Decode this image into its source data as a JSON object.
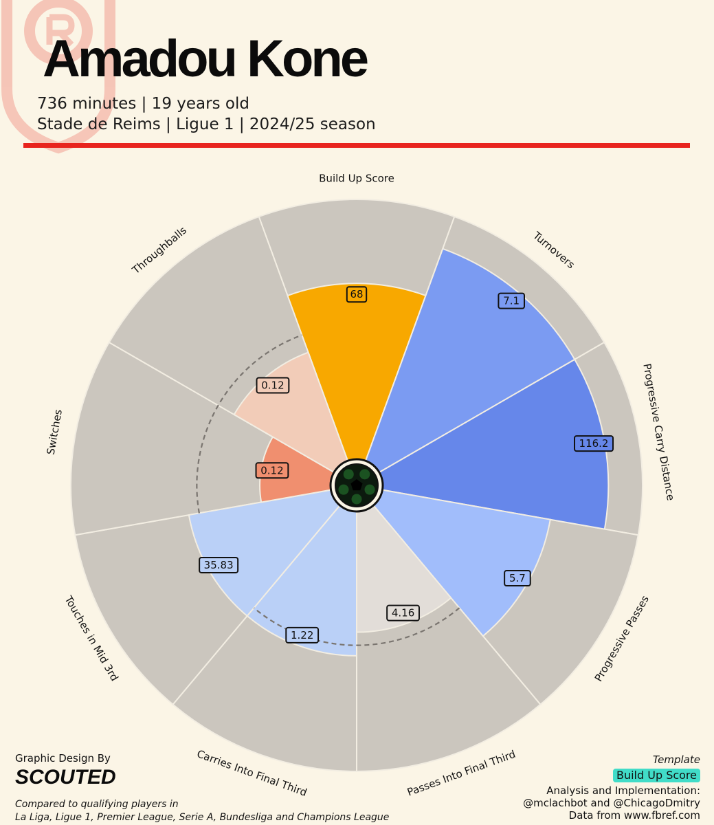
{
  "header": {
    "player_name": "Amadou Kone",
    "line1": "736 minutes | 19 years old",
    "line2": "Stade de Reims | Ligue 1 | 2024/25 season"
  },
  "chart_data": {
    "type": "radar",
    "subtype": "polar-bar",
    "center_icon": "soccer-ball-icon",
    "categories": [
      "Build Up Score",
      "Turnovers",
      "Progressive Carry Distance",
      "Progressive Passes",
      "Passes Into Final Third",
      "Carries Into Final Third",
      "Touches in Mid 3rd",
      "Switches",
      "Throughballs"
    ],
    "value_labels": [
      "68",
      "7.1",
      "116.2",
      "5.7",
      "4.16",
      "1.22",
      "35.83",
      "0.12",
      "0.12"
    ],
    "percentiles": [
      0.68,
      0.87,
      0.87,
      0.66,
      0.47,
      0.56,
      0.56,
      0.28,
      0.45
    ],
    "reference_ring": 0.52,
    "colors": [
      "#f8a800",
      "#7b9bf2",
      "#6687ea",
      "#a1bdfb",
      "#e2ddd8",
      "#bad0f7",
      "#bad0f7",
      "#f08f6f",
      "#f2ccb8"
    ],
    "background_color": "#cbc6be"
  },
  "footer": {
    "design_label": "Graphic Design By",
    "brand": "SCOUTED",
    "compare_line1": "Compared to qualifying players in",
    "compare_line2": "La Liga, Ligue 1, Premier League, Serie A, Bundesliga and Champions League",
    "template_label": "Template",
    "template_name": "Build Up Score",
    "analysis_line1": "Analysis and Implementation:",
    "analysis_line2": "@mclachbot and @ChicagoDmitry",
    "source": "Data from www.fbref.com"
  }
}
